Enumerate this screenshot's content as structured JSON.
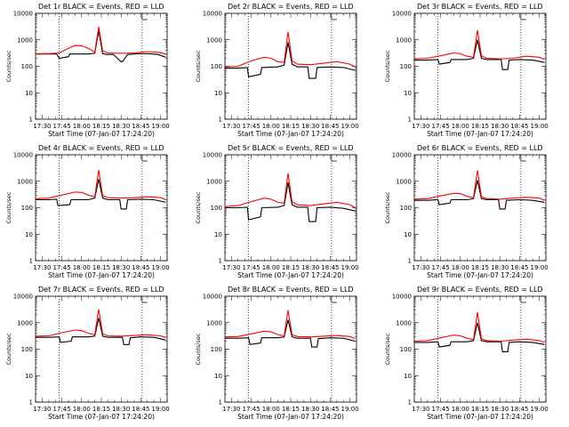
{
  "colors": {
    "events": "#000000",
    "lld": "#ff0000",
    "background": "#ffffff"
  },
  "chart_data": [
    {
      "type": "line",
      "title": "Det 1r BLACK = Events, RED = LLD",
      "xlabel": "Start Time (07-Jan-07 17:24:20)",
      "ylabel": "Counts/sec",
      "xlim": [
        "17:25",
        "19:05"
      ],
      "ylim": [
        1,
        10000
      ],
      "yscale": "log",
      "x_ticks": [
        "17:30",
        "17:45",
        "18:00",
        "18:15",
        "18:30",
        "18:45",
        "19:00"
      ],
      "y_ticks": [
        "1",
        "10",
        "100",
        "1000",
        "10000"
      ],
      "vlines": [
        "17:43",
        "18:46"
      ],
      "series": [
        {
          "name": "BLACK = Events",
          "color": "#000000",
          "x": [
            "17:25",
            "17:35",
            "17:41",
            "17:43",
            "17:50",
            "17:51",
            "18:05",
            "18:10",
            "18:13",
            "18:16",
            "18:19",
            "18:24",
            "18:30",
            "18:31",
            "18:35",
            "18:36",
            "18:43",
            "18:50",
            "18:58",
            "19:04"
          ],
          "y": [
            290,
            290,
            290,
            200,
            230,
            290,
            290,
            310,
            2200,
            300,
            280,
            280,
            150,
            150,
            280,
            280,
            300,
            300,
            280,
            220
          ]
        },
        {
          "name": "RED = LLD",
          "color": "#ff0000",
          "x": [
            "17:25",
            "17:35",
            "17:43",
            "17:50",
            "17:55",
            "18:00",
            "18:05",
            "18:10",
            "18:13",
            "18:16",
            "18:20",
            "18:30",
            "18:40",
            "18:50",
            "19:00",
            "19:04"
          ],
          "y": [
            300,
            300,
            320,
            480,
            610,
            600,
            480,
            340,
            3100,
            380,
            320,
            310,
            320,
            360,
            330,
            280
          ]
        }
      ]
    },
    {
      "type": "line",
      "title": "Det 2r BLACK = Events, RED = LLD",
      "xlabel": "Start Time (07-Jan-07 17:24:20)",
      "ylabel": "Counts/sec",
      "xlim": [
        "17:25",
        "19:05"
      ],
      "ylim": [
        1,
        10000
      ],
      "yscale": "log",
      "x_ticks": [
        "17:30",
        "17:45",
        "18:00",
        "18:15",
        "18:30",
        "18:45",
        "19:00"
      ],
      "y_ticks": [
        "1",
        "10",
        "100",
        "1000",
        "10000"
      ],
      "vlines": [
        "17:43",
        "18:46"
      ],
      "series": [
        {
          "name": "BLACK = Events",
          "color": "#000000",
          "x": [
            "17:25",
            "17:35",
            "17:42",
            "17:43",
            "17:52",
            "17:53",
            "18:05",
            "18:10",
            "18:13",
            "18:16",
            "18:20",
            "18:28",
            "18:29",
            "18:34",
            "18:35",
            "18:45",
            "18:55",
            "19:04"
          ],
          "y": [
            85,
            85,
            90,
            40,
            50,
            90,
            95,
            110,
            800,
            120,
            95,
            95,
            35,
            35,
            90,
            95,
            90,
            70
          ]
        },
        {
          "name": "RED = LLD",
          "color": "#ff0000",
          "x": [
            "17:25",
            "17:35",
            "17:45",
            "17:55",
            "18:00",
            "18:05",
            "18:10",
            "18:13",
            "18:16",
            "18:20",
            "18:30",
            "18:40",
            "18:50",
            "19:00",
            "19:04"
          ],
          "y": [
            95,
            100,
            160,
            220,
            200,
            150,
            140,
            2000,
            160,
            120,
            115,
            130,
            150,
            120,
            95
          ]
        }
      ]
    },
    {
      "type": "line",
      "title": "Det 3r BLACK = Events, RED = LLD",
      "xlabel": "Start Time (07-Jan-07 17:24:20)",
      "ylabel": "Counts/sec",
      "xlim": [
        "17:25",
        "19:05"
      ],
      "ylim": [
        1,
        10000
      ],
      "yscale": "log",
      "x_ticks": [
        "17:30",
        "17:45",
        "18:00",
        "18:15",
        "18:30",
        "18:45",
        "19:00"
      ],
      "y_ticks": [
        "1",
        "10",
        "100",
        "1000",
        "10000"
      ],
      "vlines": [
        "17:43",
        "18:46"
      ],
      "series": [
        {
          "name": "BLACK = Events",
          "color": "#000000",
          "x": [
            "17:25",
            "17:35",
            "17:43",
            "17:44",
            "17:52",
            "17:53",
            "18:05",
            "18:10",
            "18:13",
            "18:16",
            "18:20",
            "18:31",
            "18:32",
            "18:36",
            "18:37",
            "18:45",
            "18:55",
            "19:04"
          ],
          "y": [
            170,
            170,
            180,
            120,
            140,
            180,
            180,
            200,
            1000,
            200,
            180,
            180,
            75,
            75,
            170,
            180,
            170,
            140
          ]
        },
        {
          "name": "RED = LLD",
          "color": "#ff0000",
          "x": [
            "17:25",
            "17:35",
            "17:45",
            "17:55",
            "18:00",
            "18:05",
            "18:10",
            "18:13",
            "18:16",
            "18:20",
            "18:30",
            "18:40",
            "18:50",
            "19:00",
            "19:04"
          ],
          "y": [
            190,
            200,
            250,
            320,
            300,
            240,
            220,
            2300,
            250,
            200,
            190,
            200,
            240,
            220,
            180
          ]
        }
      ]
    },
    {
      "type": "line",
      "title": "Det 4r BLACK = Events, RED = LLD",
      "xlabel": "Start Time (07-Jan-07 17:24:20)",
      "ylabel": "Counts/sec",
      "xlim": [
        "17:25",
        "19:05"
      ],
      "ylim": [
        1,
        10000
      ],
      "yscale": "log",
      "x_ticks": [
        "17:30",
        "17:45",
        "18:00",
        "18:15",
        "18:30",
        "18:45",
        "19:00"
      ],
      "y_ticks": [
        "1",
        "10",
        "100",
        "1000",
        "10000"
      ],
      "vlines": [
        "17:43",
        "18:46"
      ],
      "series": [
        {
          "name": "BLACK = Events",
          "color": "#000000",
          "x": [
            "17:25",
            "17:35",
            "17:41",
            "17:42",
            "17:51",
            "17:52",
            "18:05",
            "18:10",
            "18:13",
            "18:16",
            "18:20",
            "18:29",
            "18:30",
            "18:34",
            "18:35",
            "18:45",
            "18:55",
            "19:04"
          ],
          "y": [
            200,
            200,
            210,
            120,
            130,
            200,
            200,
            230,
            1200,
            230,
            200,
            200,
            90,
            90,
            200,
            210,
            200,
            160
          ]
        },
        {
          "name": "RED = LLD",
          "color": "#ff0000",
          "x": [
            "17:25",
            "17:35",
            "17:45",
            "17:55",
            "18:00",
            "18:05",
            "18:10",
            "18:13",
            "18:16",
            "18:20",
            "18:30",
            "18:40",
            "18:50",
            "19:00",
            "19:04"
          ],
          "y": [
            220,
            230,
            300,
            390,
            380,
            300,
            260,
            2700,
            280,
            240,
            230,
            240,
            260,
            240,
            200
          ]
        }
      ]
    },
    {
      "type": "line",
      "title": "Det 5r BLACK = Events, RED = LLD",
      "xlabel": "Start Time (07-Jan-07 17:24:20)",
      "ylabel": "Counts/sec",
      "xlim": [
        "17:25",
        "19:05"
      ],
      "ylim": [
        1,
        10000
      ],
      "yscale": "log",
      "x_ticks": [
        "17:30",
        "17:45",
        "18:00",
        "18:15",
        "18:30",
        "18:45",
        "19:00"
      ],
      "y_ticks": [
        "1",
        "10",
        "100",
        "1000",
        "10000"
      ],
      "vlines": [
        "17:43",
        "18:46"
      ],
      "series": [
        {
          "name": "BLACK = Events",
          "color": "#000000",
          "x": [
            "17:25",
            "17:35",
            "17:42",
            "17:43",
            "17:52",
            "17:53",
            "18:05",
            "18:10",
            "18:13",
            "18:16",
            "18:20",
            "18:28",
            "18:29",
            "18:34",
            "18:35",
            "18:45",
            "18:55",
            "19:04"
          ],
          "y": [
            100,
            100,
            105,
            35,
            45,
            100,
            105,
            120,
            900,
            130,
            105,
            105,
            30,
            30,
            100,
            105,
            95,
            75
          ]
        },
        {
          "name": "RED = LLD",
          "color": "#ff0000",
          "x": [
            "17:25",
            "17:35",
            "17:45",
            "17:55",
            "18:00",
            "18:05",
            "18:10",
            "18:13",
            "18:16",
            "18:20",
            "18:30",
            "18:40",
            "18:50",
            "19:00",
            "19:04"
          ],
          "y": [
            110,
            120,
            170,
            230,
            210,
            160,
            150,
            2000,
            170,
            130,
            120,
            140,
            160,
            130,
            100
          ]
        }
      ]
    },
    {
      "type": "line",
      "title": "Det 6r BLACK = Events, RED = LLD",
      "xlabel": "Start Time (07-Jan-07 17:24:20)",
      "ylabel": "Counts/sec",
      "xlim": [
        "17:25",
        "19:05"
      ],
      "ylim": [
        1,
        10000
      ],
      "yscale": "log",
      "x_ticks": [
        "17:30",
        "17:45",
        "18:00",
        "18:15",
        "18:30",
        "18:45",
        "19:00"
      ],
      "y_ticks": [
        "1",
        "10",
        "100",
        "1000",
        "10000"
      ],
      "vlines": [
        "17:43",
        "18:46"
      ],
      "series": [
        {
          "name": "BLACK = Events",
          "color": "#000000",
          "x": [
            "17:25",
            "17:35",
            "17:43",
            "17:44",
            "17:52",
            "17:53",
            "18:05",
            "18:10",
            "18:13",
            "18:16",
            "18:20",
            "18:29",
            "18:30",
            "18:34",
            "18:35",
            "18:45",
            "18:55",
            "19:04"
          ],
          "y": [
            190,
            190,
            200,
            130,
            150,
            200,
            200,
            220,
            1100,
            220,
            200,
            200,
            90,
            90,
            190,
            200,
            190,
            160
          ]
        },
        {
          "name": "RED = LLD",
          "color": "#ff0000",
          "x": [
            "17:25",
            "17:35",
            "17:45",
            "17:55",
            "18:00",
            "18:05",
            "18:10",
            "18:13",
            "18:16",
            "18:20",
            "18:30",
            "18:40",
            "18:50",
            "19:00",
            "19:04"
          ],
          "y": [
            210,
            220,
            280,
            350,
            340,
            270,
            240,
            2600,
            260,
            220,
            210,
            230,
            250,
            230,
            190
          ]
        }
      ]
    },
    {
      "type": "line",
      "title": "Det 7r BLACK = Events, RED = LLD",
      "xlabel": "Start Time (07-Jan-07 17:24:20)",
      "ylabel": "Counts/sec",
      "xlim": [
        "17:25",
        "19:05"
      ],
      "ylim": [
        1,
        10000
      ],
      "yscale": "log",
      "x_ticks": [
        "17:30",
        "17:45",
        "18:00",
        "18:15",
        "18:30",
        "18:45",
        "19:00"
      ],
      "y_ticks": [
        "1",
        "10",
        "100",
        "1000",
        "10000"
      ],
      "vlines": [
        "17:43",
        "18:46"
      ],
      "series": [
        {
          "name": "BLACK = Events",
          "color": "#000000",
          "x": [
            "17:25",
            "17:35",
            "17:43",
            "17:44",
            "17:52",
            "17:53",
            "18:05",
            "18:10",
            "18:13",
            "18:16",
            "18:20",
            "18:31",
            "18:32",
            "18:36",
            "18:37",
            "18:45",
            "18:55",
            "19:04"
          ],
          "y": [
            280,
            280,
            290,
            180,
            200,
            290,
            290,
            310,
            1500,
            310,
            280,
            280,
            150,
            150,
            270,
            290,
            280,
            220
          ]
        },
        {
          "name": "RED = LLD",
          "color": "#ff0000",
          "x": [
            "17:25",
            "17:35",
            "17:45",
            "17:55",
            "18:00",
            "18:05",
            "18:10",
            "18:13",
            "18:16",
            "18:20",
            "18:30",
            "18:40",
            "18:50",
            "19:00",
            "19:04"
          ],
          "y": [
            310,
            320,
            420,
            530,
            500,
            400,
            350,
            3200,
            380,
            320,
            310,
            330,
            350,
            320,
            270
          ]
        }
      ]
    },
    {
      "type": "line",
      "title": "Det 8r BLACK = Events, RED = LLD",
      "xlabel": "Start Time (07-Jan-07 17:24:20)",
      "ylabel": "Counts/sec",
      "xlim": [
        "17:25",
        "19:05"
      ],
      "ylim": [
        1,
        10000
      ],
      "yscale": "log",
      "x_ticks": [
        "17:30",
        "17:45",
        "18:00",
        "18:15",
        "18:30",
        "18:45",
        "19:00"
      ],
      "y_ticks": [
        "1",
        "10",
        "100",
        "1000",
        "10000"
      ],
      "vlines": [
        "17:43",
        "18:46"
      ],
      "series": [
        {
          "name": "BLACK = Events",
          "color": "#000000",
          "x": [
            "17:25",
            "17:35",
            "17:43",
            "17:44",
            "17:52",
            "17:53",
            "18:05",
            "18:10",
            "18:13",
            "18:16",
            "18:20",
            "18:30",
            "18:31",
            "18:35",
            "18:36",
            "18:45",
            "18:55",
            "19:04"
          ],
          "y": [
            260,
            260,
            270,
            150,
            170,
            270,
            270,
            290,
            1300,
            290,
            260,
            260,
            120,
            120,
            250,
            270,
            260,
            200
          ]
        },
        {
          "name": "RED = LLD",
          "color": "#ff0000",
          "x": [
            "17:25",
            "17:35",
            "17:45",
            "17:55",
            "18:00",
            "18:05",
            "18:10",
            "18:13",
            "18:16",
            "18:20",
            "18:30",
            "18:40",
            "18:50",
            "19:00",
            "19:04"
          ],
          "y": [
            290,
            300,
            380,
            480,
            450,
            360,
            320,
            3000,
            350,
            300,
            290,
            310,
            330,
            300,
            250
          ]
        }
      ]
    },
    {
      "type": "line",
      "title": "Det 9r BLACK = Events, RED = LLD",
      "xlabel": "Start Time (07-Jan-07 17:24:20)",
      "ylabel": "Counts/sec",
      "xlim": [
        "17:25",
        "19:05"
      ],
      "ylim": [
        1,
        10000
      ],
      "yscale": "log",
      "x_ticks": [
        "17:30",
        "17:45",
        "18:00",
        "18:15",
        "18:30",
        "18:45",
        "19:00"
      ],
      "y_ticks": [
        "1",
        "10",
        "100",
        "1000",
        "10000"
      ],
      "vlines": [
        "17:43",
        "18:46"
      ],
      "series": [
        {
          "name": "BLACK = Events",
          "color": "#000000",
          "x": [
            "17:25",
            "17:35",
            "17:43",
            "17:44",
            "17:52",
            "17:53",
            "18:05",
            "18:10",
            "18:13",
            "18:16",
            "18:20",
            "18:31",
            "18:32",
            "18:36",
            "18:37",
            "18:45",
            "18:55",
            "19:04"
          ],
          "y": [
            180,
            180,
            190,
            120,
            140,
            190,
            190,
            210,
            1000,
            210,
            190,
            190,
            80,
            80,
            180,
            190,
            180,
            150
          ]
        },
        {
          "name": "RED = LLD",
          "color": "#ff0000",
          "x": [
            "17:25",
            "17:35",
            "17:45",
            "17:55",
            "18:00",
            "18:05",
            "18:10",
            "18:13",
            "18:16",
            "18:20",
            "18:30",
            "18:40",
            "18:50",
            "19:00",
            "19:04"
          ],
          "y": [
            200,
            210,
            270,
            340,
            320,
            260,
            230,
            2500,
            250,
            210,
            200,
            220,
            240,
            210,
            180
          ]
        }
      ]
    }
  ]
}
